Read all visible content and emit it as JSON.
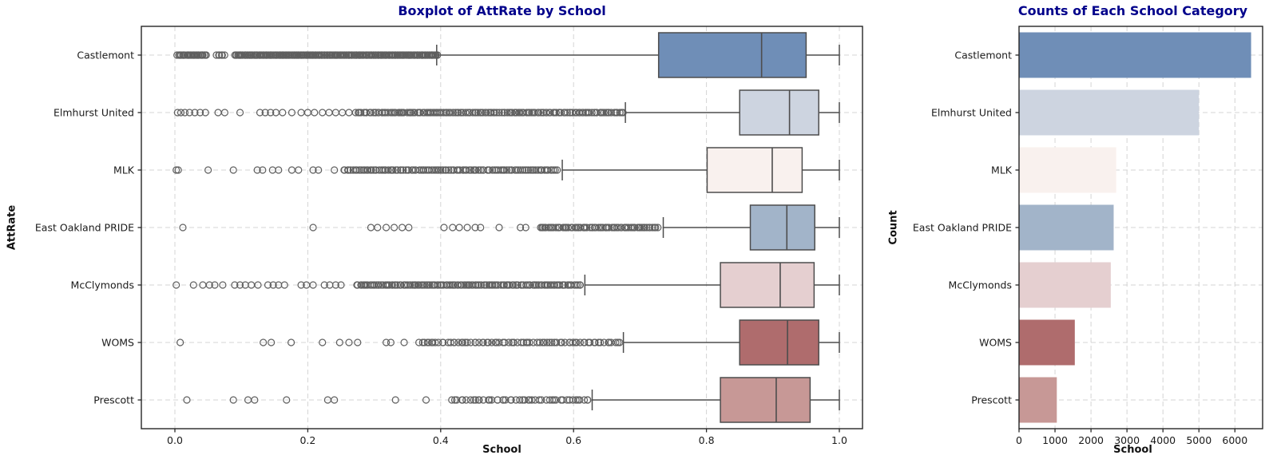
{
  "figure": {
    "background": "#ffffff",
    "title_color": "#00008b",
    "axis_color": "#1a1a1a",
    "grid_color": "#d4d4d4",
    "spine_color": "#262626",
    "box_edge_color": "#4d4d4d",
    "outlier_color": "#5f5f5f"
  },
  "chart_data": [
    {
      "type": "boxplot",
      "orientation": "horizontal",
      "title": "Boxplot of AttRate by School",
      "xlabel": "School",
      "ylabel": "AttRate",
      "xlim": [
        -0.05,
        1.04
      ],
      "xticks": [
        "0.0",
        "0.2",
        "0.4",
        "0.6",
        "0.8",
        "1.0"
      ],
      "xtick_values": [
        0.0,
        0.2,
        0.4,
        0.6,
        0.8,
        1.0
      ],
      "grid": true,
      "categories": [
        "Castlemont",
        "Elmhurst United",
        "MLK",
        "East Oakland PRIDE",
        "McClymonds",
        "WOMS",
        "Prescott"
      ],
      "series": [
        {
          "school": "Castlemont",
          "color": "#6f8eb7",
          "whisker_low": 0.394,
          "q1": 0.728,
          "median": 0.883,
          "q3": 0.95,
          "whisker_high": 1.0,
          "outliers": [],
          "outlier_ranges": [
            [
              0.003,
              0.048,
              30
            ],
            [
              0.062,
              0.075,
              6
            ],
            [
              0.09,
              0.396,
              230
            ]
          ]
        },
        {
          "school": "Elmhurst United",
          "color": "#cdd4e0",
          "whisker_low": 0.678,
          "q1": 0.85,
          "median": 0.925,
          "q3": 0.969,
          "whisker_high": 1.0,
          "outliers": [
            0.004,
            0.009,
            0.015,
            0.022,
            0.03,
            0.038,
            0.046,
            0.065,
            0.075,
            0.098,
            0.128,
            0.136,
            0.144,
            0.152,
            0.162,
            0.176,
            0.19,
            0.2,
            0.21,
            0.222,
            0.232,
            0.242,
            0.252,
            0.262
          ],
          "outlier_ranges": [
            [
              0.272,
              0.675,
              150
            ]
          ]
        },
        {
          "school": "MLK",
          "color": "#f9f1ee",
          "whisker_low": 0.583,
          "q1": 0.801,
          "median": 0.899,
          "q3": 0.944,
          "whisker_high": 1.0,
          "outliers": [
            0.002,
            0.005,
            0.05,
            0.088,
            0.124,
            0.132,
            0.147,
            0.156,
            0.176,
            0.186,
            0.208,
            0.216,
            0.24
          ],
          "outlier_ranges": [
            [
              0.252,
              0.578,
              115
            ]
          ]
        },
        {
          "school": "East Oakland PRIDE",
          "color": "#a2b4c9",
          "whisker_low": 0.735,
          "q1": 0.866,
          "median": 0.921,
          "q3": 0.963,
          "whisker_high": 1.0,
          "outliers": [
            0.012,
            0.208,
            0.295,
            0.305,
            0.318,
            0.33,
            0.342,
            0.352,
            0.405,
            0.418,
            0.428,
            0.44,
            0.452,
            0.46,
            0.488,
            0.52,
            0.528
          ],
          "outlier_ranges": [
            [
              0.548,
              0.728,
              70
            ]
          ]
        },
        {
          "school": "McClymonds",
          "color": "#e5cfd0",
          "whisker_low": 0.617,
          "q1": 0.821,
          "median": 0.911,
          "q3": 0.962,
          "whisker_high": 1.0,
          "outliers": [
            0.002,
            0.028,
            0.042,
            0.052,
            0.06,
            0.072,
            0.09,
            0.098,
            0.106,
            0.115,
            0.125,
            0.14,
            0.148,
            0.156,
            0.165,
            0.19,
            0.198,
            0.208,
            0.225,
            0.233,
            0.242,
            0.25
          ],
          "outlier_ranges": [
            [
              0.272,
              0.612,
              135
            ]
          ]
        },
        {
          "school": "WOMS",
          "color": "#af6c6d",
          "whisker_low": 0.675,
          "q1": 0.85,
          "median": 0.922,
          "q3": 0.969,
          "whisker_high": 1.0,
          "outliers": [
            0.008,
            0.133,
            0.145,
            0.175,
            0.222,
            0.248,
            0.262,
            0.275,
            0.318,
            0.325,
            0.345
          ],
          "outlier_ranges": [
            [
              0.365,
              0.672,
              78
            ]
          ]
        },
        {
          "school": "Prescott",
          "color": "#c79896",
          "whisker_low": 0.628,
          "q1": 0.821,
          "median": 0.905,
          "q3": 0.956,
          "whisker_high": 1.0,
          "outliers": [
            0.018,
            0.088,
            0.11,
            0.12,
            0.168,
            0.23,
            0.24,
            0.332,
            0.378
          ],
          "outlier_ranges": [
            [
              0.415,
              0.625,
              48
            ]
          ]
        }
      ]
    },
    {
      "type": "bar",
      "orientation": "horizontal",
      "title": "Counts of Each School Category",
      "xlabel": "School",
      "ylabel": "Count",
      "xlim": [
        0,
        6770
      ],
      "xticks": [
        "0",
        "1000",
        "2000",
        "3000",
        "4000",
        "5000",
        "6000"
      ],
      "xtick_values": [
        0,
        1000,
        2000,
        3000,
        4000,
        5000,
        6000
      ],
      "grid": true,
      "categories": [
        "Castlemont",
        "Elmhurst United",
        "MLK",
        "East Oakland PRIDE",
        "McClymonds",
        "WOMS",
        "Prescott"
      ],
      "values": [
        6450,
        5000,
        2700,
        2630,
        2550,
        1550,
        1050
      ],
      "colors": [
        "#6f8eb7",
        "#cdd4e0",
        "#f9f1ee",
        "#a2b4c9",
        "#e5cfd0",
        "#af6c6d",
        "#c79896"
      ]
    }
  ]
}
